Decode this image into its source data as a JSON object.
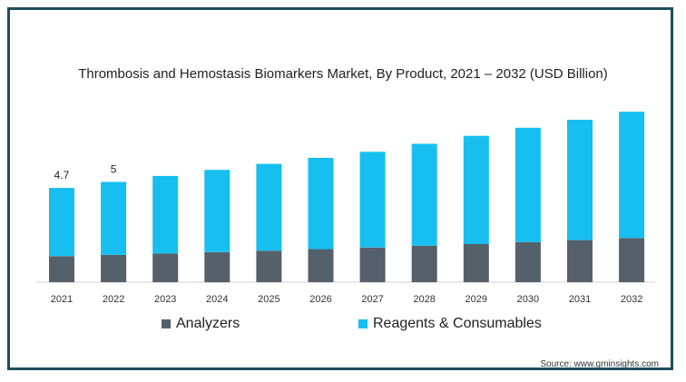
{
  "chart_data": {
    "type": "bar",
    "stacked": true,
    "title": "Thrombosis and Hemostasis Biomarkers Market, By Product, 2021 – 2032 (USD Billion)",
    "categories": [
      "2021",
      "2022",
      "2023",
      "2024",
      "2025",
      "2026",
      "2027",
      "2028",
      "2029",
      "2030",
      "2031",
      "2032"
    ],
    "series": [
      {
        "name": "Analyzers",
        "color": "#56606a",
        "values": [
          1.3,
          1.36,
          1.43,
          1.5,
          1.57,
          1.65,
          1.73,
          1.82,
          1.9,
          2.0,
          2.1,
          2.2
        ]
      },
      {
        "name": "Reagents & Consumables",
        "color": "#16bff0",
        "values": [
          3.4,
          3.64,
          3.87,
          4.1,
          4.33,
          4.55,
          4.77,
          5.08,
          5.4,
          5.7,
          6.0,
          6.3
        ]
      }
    ],
    "data_labels": [
      {
        "category": "2021",
        "text": "4.7"
      },
      {
        "category": "2022",
        "text": "5"
      }
    ],
    "ylim": [
      0,
      9.0
    ],
    "grid": false,
    "legend_position": "bottom"
  },
  "source": "Source: www.gminsights.com"
}
